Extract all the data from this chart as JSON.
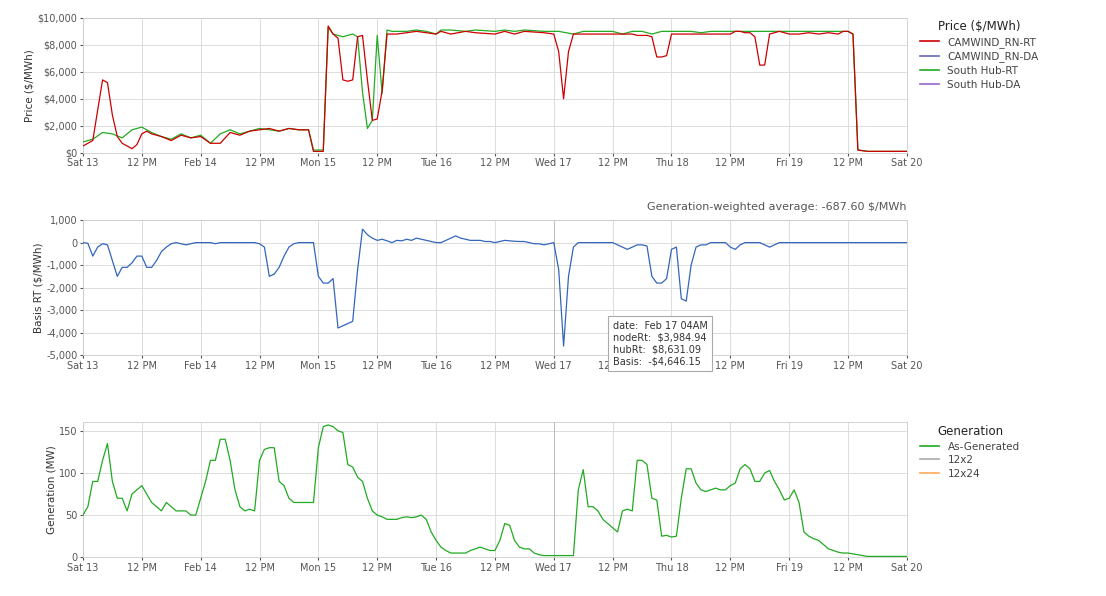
{
  "ylabel_price": "Price ($/MWh)",
  "ylabel_basis": "Basis RT ($/MWh)",
  "ylabel_gen": "Generation (MW)",
  "x_labels": [
    "Sat 13",
    "12 PM",
    "Feb 14",
    "12 PM",
    "Mon 15",
    "12 PM",
    "Tue 16",
    "12 PM",
    "Wed 17",
    "12 PM",
    "Thu 18",
    "12 PM",
    "Fri 19",
    "12 PM",
    "Sat 20"
  ],
  "x_ticks": [
    0,
    12,
    24,
    36,
    48,
    60,
    72,
    84,
    96,
    108,
    120,
    132,
    144,
    156,
    168
  ],
  "price_ylim": [
    0,
    10000
  ],
  "price_yticks": [
    0,
    2000,
    4000,
    6000,
    8000,
    10000
  ],
  "price_yticklabels": [
    "$0",
    "$2,000",
    "$4,000",
    "$6,000",
    "$8,000",
    "$10,000"
  ],
  "basis_ylim": [
    -5000,
    1000
  ],
  "basis_yticks": [
    -5000,
    -4000,
    -3000,
    -2000,
    -1000,
    0,
    1000
  ],
  "basis_yticklabels": [
    "-5,000",
    "-4,000",
    "-3,000",
    "-2,000",
    "-1,000",
    "0",
    "1,000"
  ],
  "gen_ylim": [
    0,
    160
  ],
  "gen_yticks": [
    0,
    50,
    100,
    150
  ],
  "gen_yticklabels": [
    "0",
    "50",
    "100",
    "150"
  ],
  "color_red": "#cc0000",
  "color_green": "#22aa22",
  "color_blue": "#3366bb",
  "color_purple": "#9966cc",
  "color_gray": "#aaaaaa",
  "color_orange": "#ffaa55",
  "bg_color": "#ffffff",
  "grid_color": "#dddddd",
  "annotation_text": "Generation-weighted average: -687.60 $/MWh",
  "tooltip_text": "date:  Feb 17 04AM\nnodeRt:  $3,984.94\nhubRt:  $8,631.09\nBasis:  -$4,646.15",
  "legend_price_title": "Price ($/MWh)",
  "legend_price_entries": [
    "CAMWIND_RN-RT",
    "CAMWIND_RN-DA",
    "South Hub-RT",
    "South Hub-DA"
  ],
  "legend_gen_title": "Generation",
  "legend_gen_entries": [
    "As-Generated",
    "12x2",
    "12x24"
  ]
}
